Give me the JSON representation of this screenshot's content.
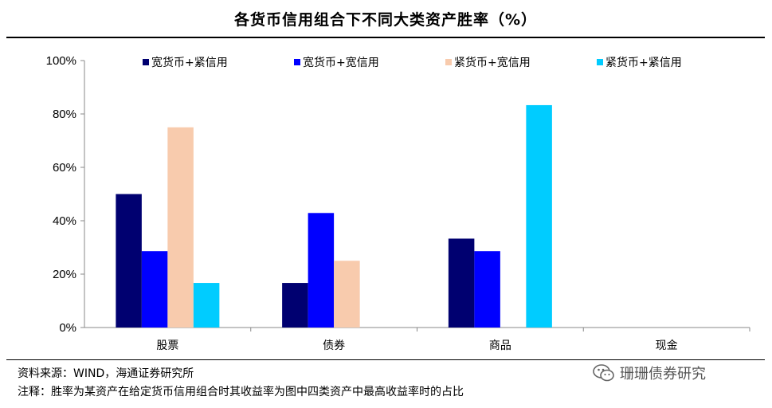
{
  "title": "各货币信用组合下不同大类资产胜率（%）",
  "source": "资料来源：WIND，海通证券研究所",
  "note": "注释：胜率为某资产在给定货币信用组合时其收益率为图中四类资产中最高收益率时的占比",
  "watermark": "珊珊债券研究",
  "icon_names": [
    "wechat-icon"
  ],
  "chart_data": {
    "type": "bar",
    "title": "各货币信用组合下不同大类资产胜率（%）",
    "categories": [
      "股票",
      "债券",
      "商品",
      "现金"
    ],
    "series": [
      {
        "name": "宽货币+紧信用",
        "color": "#000070",
        "values": [
          50,
          16.7,
          33.3,
          0
        ]
      },
      {
        "name": "宽货币+宽信用",
        "color": "#0000ff",
        "values": [
          28.6,
          42.9,
          28.6,
          0
        ]
      },
      {
        "name": "紧货币+宽信用",
        "color": "#f8cbad",
        "values": [
          75,
          25,
          0,
          0
        ]
      },
      {
        "name": "紧货币+紧信用",
        "color": "#00ccff",
        "values": [
          16.7,
          0,
          83.3,
          0
        ]
      }
    ],
    "ylim": [
      0,
      100
    ],
    "yticks": [
      "0%",
      "20%",
      "40%",
      "60%",
      "80%",
      "100%"
    ],
    "ytick_values": [
      0,
      20,
      40,
      60,
      80,
      100
    ],
    "legend_position": "top",
    "grid": false
  }
}
